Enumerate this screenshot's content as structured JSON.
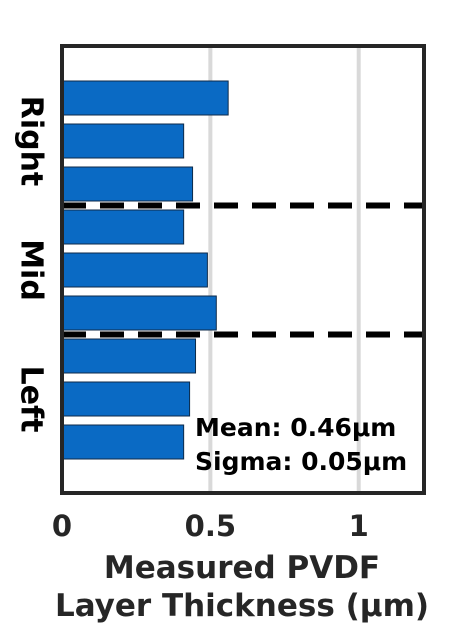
{
  "chart_data": {
    "type": "bar",
    "orientation": "horizontal",
    "groups": [
      {
        "label": "Right",
        "values": [
          0.56,
          0.41,
          0.44
        ]
      },
      {
        "label": "Mid",
        "values": [
          0.41,
          0.49,
          0.52
        ]
      },
      {
        "label": "Left",
        "values": [
          0.45,
          0.43,
          0.41
        ]
      }
    ],
    "xlim": [
      0,
      1.22
    ],
    "xticks": [
      0,
      0.5,
      1
    ],
    "xtick_labels": [
      "0",
      "0.5",
      "1"
    ],
    "xlabel_line1": "Measured PVDF",
    "xlabel_line2": "Layer Thickness (μm)",
    "grid": "vertical",
    "group_separators": "dashed",
    "annotations": [
      "Mean: 0.46μm",
      "Sigma: 0.05μm"
    ],
    "bar_color": "#0a6ac4"
  }
}
